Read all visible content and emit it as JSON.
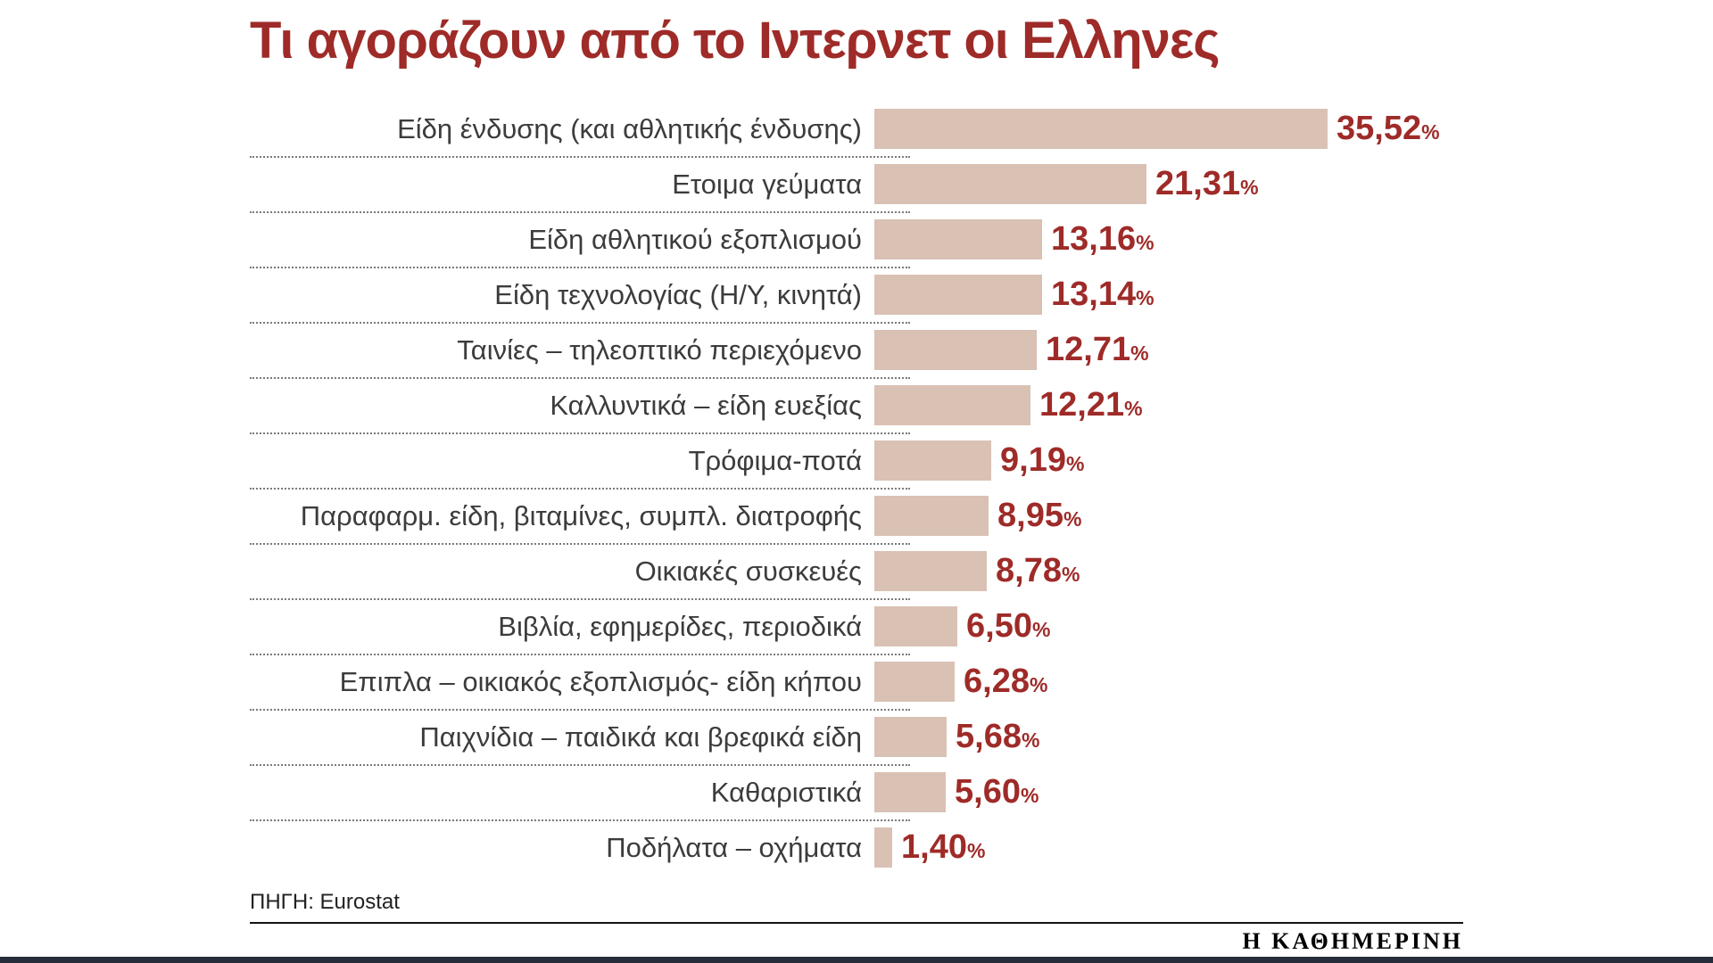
{
  "title": "Τι αγοράζουν από το Ιντερνετ οι Ελληνες",
  "source_label": "ΠΗΓΗ: Eurostat",
  "brand": "Η ΚΑΘΗΜΕΡΙΝΗ",
  "percent_sign": "%",
  "colors": {
    "title": "#9e2b28",
    "bar": "#d9c1b4",
    "value_text": "#9e2b28",
    "category_text": "#3c3c3c",
    "bottom_border": "#272c3a"
  },
  "chart_data": {
    "type": "bar",
    "orientation": "horizontal",
    "title": "Τι αγοράζουν από το Ιντερνετ οι Ελληνες",
    "xlabel": "",
    "ylabel": "",
    "xlim": [
      0,
      40
    ],
    "grid": false,
    "legend": "none",
    "categories": [
      "Είδη ένδυσης (και αθλητικής ένδυσης)",
      "Ετοιμα γεύματα",
      "Είδη αθλητικού εξοπλισμού",
      "Είδη τεχνολογίας (Η/Υ, κινητά)",
      "Ταινίες – τηλεοπτικό περιεχόμενο",
      "Καλλυντικά – είδη ευεξίας",
      "Τρόφιμα-ποτά",
      "Παραφαρμ. είδη, βιταμίνες, συμπλ. διατροφής",
      "Οικιακές συσκευές",
      "Βιβλία, εφημερίδες, περιοδικά",
      "Επιπλα – οικιακός εξοπλισμός- είδη κήπου",
      "Παιχνίδια – παιδικά και βρεφικά είδη",
      "Καθαριστικά",
      "Ποδήλατα – οχήματα"
    ],
    "values": [
      35.52,
      21.31,
      13.16,
      13.14,
      12.71,
      12.21,
      9.19,
      8.95,
      8.78,
      6.5,
      6.28,
      5.68,
      5.6,
      1.4
    ],
    "value_labels": [
      "35,52",
      "21,31",
      "13,16",
      "13,14",
      "12,71",
      "12,21",
      "9,19",
      "8,95",
      "8,78",
      "6,50",
      "6,28",
      "5,68",
      "5,60",
      "1,40"
    ],
    "source": "Eurostat"
  }
}
